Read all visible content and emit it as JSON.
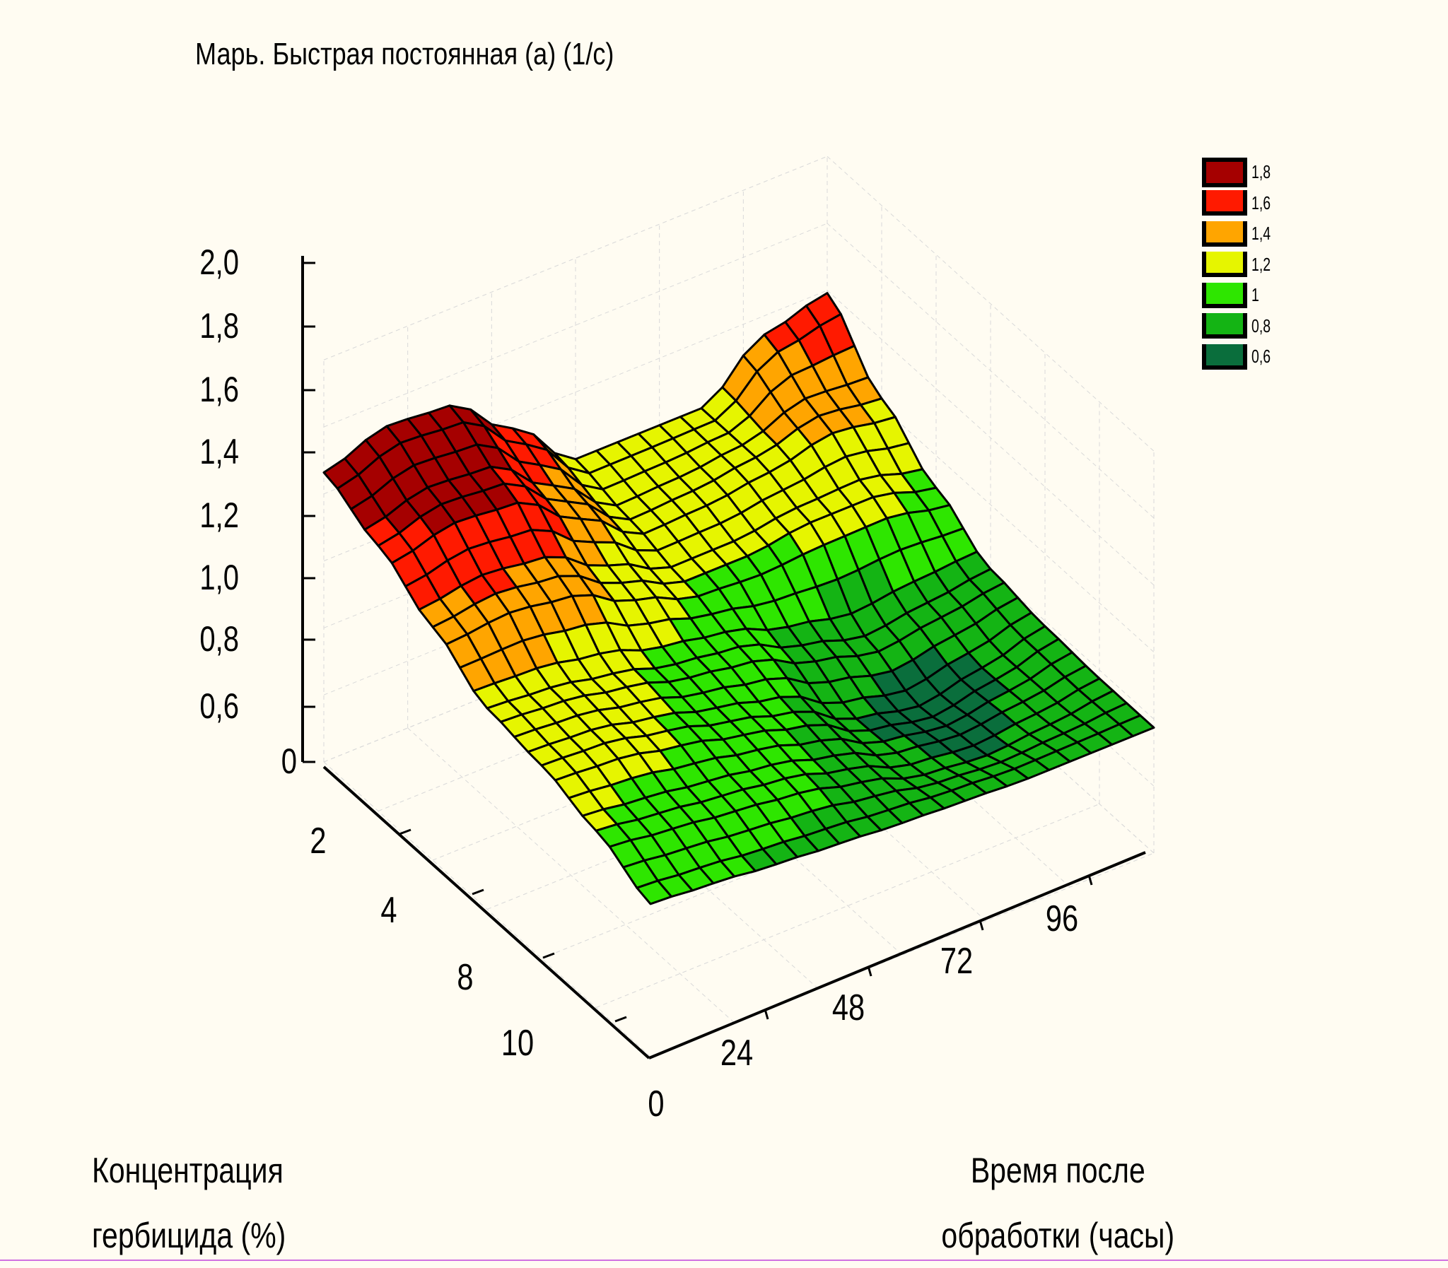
{
  "chart_data": {
    "type": "surface3d",
    "title": "Марь. Быстрая постоянная (a) (1/c)",
    "xlabel": [
      "Концентрация",
      "гербицида (%)"
    ],
    "ylabel": [
      "Время после",
      "обработки (часы)"
    ],
    "x_ticks": [
      "0",
      "2",
      "4",
      "8",
      "10"
    ],
    "y_ticks": [
      "0",
      "24",
      "48",
      "72",
      "96"
    ],
    "z_ticks": [
      "0",
      "0,6",
      "0,8",
      "1,0",
      "1,2",
      "1,4",
      "1,6",
      "1,8",
      "2,0"
    ],
    "zlim": [
      0,
      2.0
    ],
    "grid": true,
    "legend": {
      "placement": "top-right",
      "entries": [
        {
          "label": "1,8",
          "color": "#A50000"
        },
        {
          "label": "1,6",
          "color": "#FF1A00"
        },
        {
          "label": "1,4",
          "color": "#FFA500"
        },
        {
          "label": "1,2",
          "color": "#E6F500"
        },
        {
          "label": "1",
          "color": "#2EE600"
        },
        {
          "label": "0,8",
          "color": "#14B414"
        },
        {
          "label": "0,6",
          "color": "#0A6E3C"
        }
      ]
    },
    "surface": {
      "note_rows": "rows follow Концентрация from 0 to 12; columns follow Время после обработки from 0 to 120",
      "z": [
        [
          1.8,
          1.93,
          1.9,
          1.6,
          1.25,
          1.25,
          1.25,
          1.55,
          1.65
        ],
        [
          1.65,
          1.75,
          1.72,
          1.45,
          1.18,
          1.2,
          1.25,
          1.35,
          1.3
        ],
        [
          1.45,
          1.5,
          1.45,
          1.25,
          1.1,
          1.1,
          1.15,
          1.15,
          1.05
        ],
        [
          1.25,
          1.22,
          1.15,
          1.05,
          1.0,
          0.85,
          0.75,
          0.8,
          0.85
        ],
        [
          1.2,
          1.18,
          1.1,
          1.0,
          0.9,
          0.7,
          0.62,
          0.7,
          0.8
        ],
        [
          1.1,
          1.05,
          1.0,
          0.95,
          0.85,
          0.72,
          0.68,
          0.72,
          0.78
        ],
        [
          0.95,
          0.92,
          0.88,
          0.85,
          0.82,
          0.8,
          0.78,
          0.78,
          0.78
        ]
      ]
    }
  }
}
